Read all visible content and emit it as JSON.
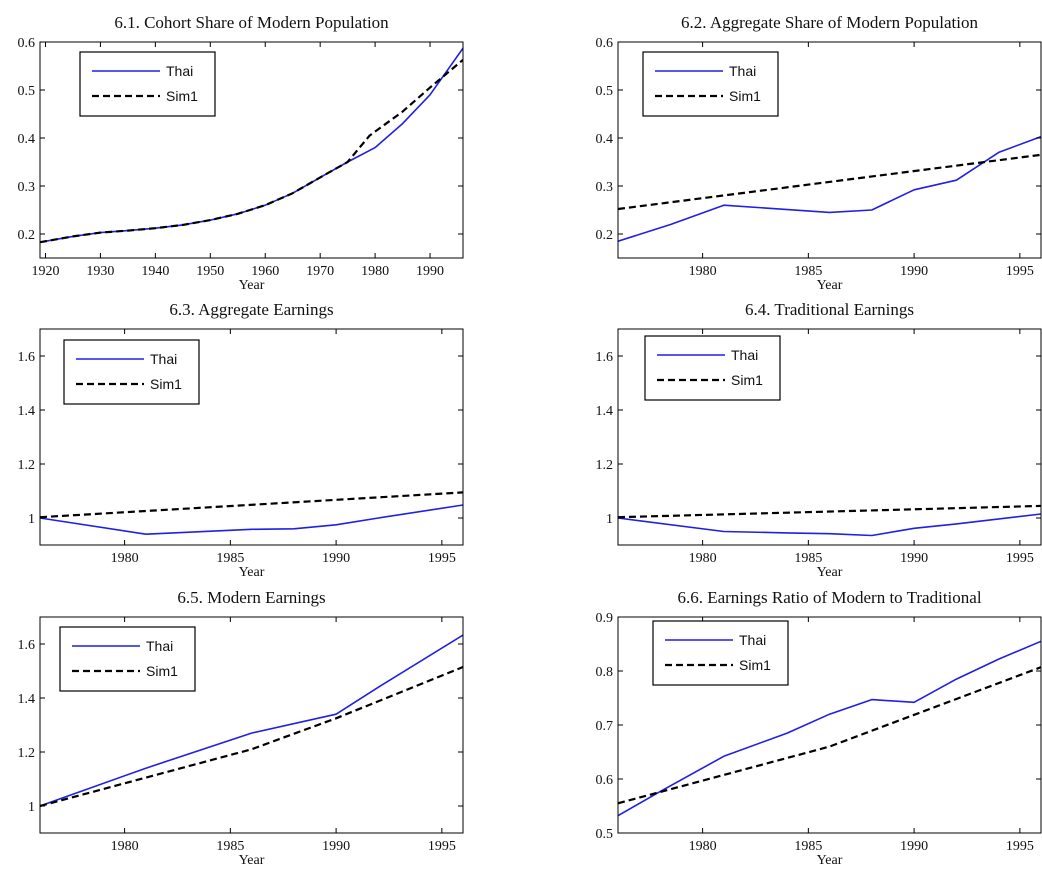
{
  "colors": {
    "thai": "#1f1fe6",
    "sim": "#000000",
    "axis": "#000000",
    "background": "#ffffff"
  },
  "chart_data": [
    {
      "type": "line",
      "title": "6.1. Cohort Share of Modern Population",
      "xlabel": "Year",
      "ylabel": "",
      "xlim": [
        1919,
        1996
      ],
      "ylim": [
        0.15,
        0.6
      ],
      "xticks": [
        1920,
        1930,
        1940,
        1950,
        1960,
        1970,
        1980,
        1990
      ],
      "yticks": [
        0.2,
        0.3,
        0.4,
        0.5,
        0.6
      ],
      "xtick_labels": [
        "1920",
        "1930",
        "1940",
        "1950",
        "1960",
        "1970",
        "1980",
        "1990"
      ],
      "ytick_labels": [
        "0.2",
        "0.3",
        "0.4",
        "0.5",
        "0.6"
      ],
      "legend_position": "top-left",
      "grid": false,
      "series": [
        {
          "name": "Thai",
          "x": [
            1919,
            1925,
            1930,
            1935,
            1940,
            1945,
            1950,
            1955,
            1960,
            1965,
            1970,
            1975,
            1980,
            1985,
            1990,
            1996
          ],
          "y": [
            0.183,
            0.195,
            0.203,
            0.207,
            0.212,
            0.219,
            0.229,
            0.242,
            0.26,
            0.285,
            0.318,
            0.35,
            0.38,
            0.43,
            0.49,
            0.587
          ]
        },
        {
          "name": "Sim1",
          "x": [
            1919,
            1925,
            1930,
            1935,
            1940,
            1945,
            1950,
            1955,
            1960,
            1965,
            1970,
            1975,
            1979,
            1985,
            1990,
            1996
          ],
          "y": [
            0.183,
            0.195,
            0.203,
            0.207,
            0.212,
            0.219,
            0.229,
            0.242,
            0.26,
            0.285,
            0.318,
            0.35,
            0.405,
            0.455,
            0.505,
            0.563
          ]
        }
      ]
    },
    {
      "type": "line",
      "title": "6.2. Aggregate Share of Modern Population",
      "xlabel": "Year",
      "ylabel": "",
      "xlim": [
        1976,
        1996
      ],
      "ylim": [
        0.15,
        0.6
      ],
      "xticks": [
        1980,
        1985,
        1990,
        1995
      ],
      "yticks": [
        0.2,
        0.3,
        0.4,
        0.5,
        0.6
      ],
      "xtick_labels": [
        "1980",
        "1985",
        "1990",
        "1995"
      ],
      "ytick_labels": [
        "0.2",
        "0.3",
        "0.4",
        "0.5",
        "0.6"
      ],
      "legend_position": "top-left",
      "grid": false,
      "series": [
        {
          "name": "Thai",
          "x": [
            1976,
            1978.5,
            1981,
            1986,
            1988,
            1990,
            1992,
            1994,
            1996
          ],
          "y": [
            0.185,
            0.22,
            0.26,
            0.245,
            0.25,
            0.292,
            0.312,
            0.37,
            0.403
          ]
        },
        {
          "name": "Sim1",
          "x": [
            1976,
            1996
          ],
          "y": [
            0.252,
            0.365
          ]
        }
      ]
    },
    {
      "type": "line",
      "title": "6.3. Aggregate Earnings",
      "xlabel": "Year",
      "ylabel": "",
      "xlim": [
        1976,
        1996
      ],
      "ylim": [
        0.9,
        1.7
      ],
      "xticks": [
        1980,
        1985,
        1990,
        1995
      ],
      "yticks": [
        1,
        1.2,
        1.4,
        1.6
      ],
      "xtick_labels": [
        "1980",
        "1985",
        "1990",
        "1995"
      ],
      "ytick_labels": [
        "1",
        "1.2",
        "1.4",
        "1.6"
      ],
      "legend_position": "top-left",
      "grid": false,
      "series": [
        {
          "name": "Thai",
          "x": [
            1976,
            1981,
            1986,
            1988,
            1990,
            1992,
            1996
          ],
          "y": [
            1.0,
            0.94,
            0.958,
            0.96,
            0.975,
            1.0,
            1.048
          ]
        },
        {
          "name": "Sim1",
          "x": [
            1976,
            1996
          ],
          "y": [
            1.003,
            1.095
          ]
        }
      ]
    },
    {
      "type": "line",
      "title": "6.4. Traditional Earnings",
      "xlabel": "Year",
      "ylabel": "",
      "xlim": [
        1976,
        1996
      ],
      "ylim": [
        0.9,
        1.7
      ],
      "xticks": [
        1980,
        1985,
        1990,
        1995
      ],
      "yticks": [
        1,
        1.2,
        1.4,
        1.6
      ],
      "xtick_labels": [
        "1980",
        "1985",
        "1990",
        "1995"
      ],
      "ytick_labels": [
        "1",
        "1.2",
        "1.4",
        "1.6"
      ],
      "legend_position": "top-left",
      "grid": false,
      "series": [
        {
          "name": "Thai",
          "x": [
            1976,
            1981,
            1984,
            1986,
            1988,
            1990,
            1992,
            1996
          ],
          "y": [
            1.0,
            0.95,
            0.945,
            0.942,
            0.935,
            0.962,
            0.978,
            1.015
          ]
        },
        {
          "name": "Sim1",
          "x": [
            1976,
            1996
          ],
          "y": [
            1.003,
            1.045
          ]
        }
      ]
    },
    {
      "type": "line",
      "title": "6.5. Modern Earnings",
      "xlabel": "Year",
      "ylabel": "",
      "xlim": [
        1976,
        1996
      ],
      "ylim": [
        0.9,
        1.7
      ],
      "xticks": [
        1980,
        1985,
        1990,
        1995
      ],
      "yticks": [
        1,
        1.2,
        1.4,
        1.6
      ],
      "xtick_labels": [
        "1980",
        "1985",
        "1990",
        "1995"
      ],
      "ytick_labels": [
        "1",
        "1.2",
        "1.4",
        "1.6"
      ],
      "legend_position": "top-left",
      "grid": false,
      "series": [
        {
          "name": "Thai",
          "x": [
            1976,
            1981,
            1986,
            1990,
            1992,
            1996
          ],
          "y": [
            1.0,
            1.14,
            1.27,
            1.34,
            1.44,
            1.633
          ]
        },
        {
          "name": "Sim1",
          "x": [
            1976,
            1986,
            1990,
            1996
          ],
          "y": [
            1.0,
            1.21,
            1.325,
            1.515
          ]
        }
      ]
    },
    {
      "type": "line",
      "title": "6.6. Earnings Ratio of Modern to Traditional",
      "xlabel": "Year",
      "ylabel": "",
      "xlim": [
        1976,
        1996
      ],
      "ylim": [
        0.5,
        0.9
      ],
      "xticks": [
        1980,
        1985,
        1990,
        1995
      ],
      "yticks": [
        0.5,
        0.6,
        0.7,
        0.8,
        0.9
      ],
      "xtick_labels": [
        "1980",
        "1985",
        "1990",
        "1995"
      ],
      "ytick_labels": [
        "0.5",
        "0.6",
        "0.7",
        "0.8",
        "0.9"
      ],
      "legend_position": "top-left",
      "grid": false,
      "series": [
        {
          "name": "Thai",
          "x": [
            1976,
            1978,
            1981,
            1984,
            1986,
            1988,
            1990,
            1992,
            1994,
            1996
          ],
          "y": [
            0.532,
            0.577,
            0.642,
            0.685,
            0.72,
            0.747,
            0.742,
            0.785,
            0.822,
            0.855
          ]
        },
        {
          "name": "Sim1",
          "x": [
            1976,
            1986,
            1996
          ],
          "y": [
            0.555,
            0.66,
            0.807
          ]
        }
      ]
    }
  ]
}
